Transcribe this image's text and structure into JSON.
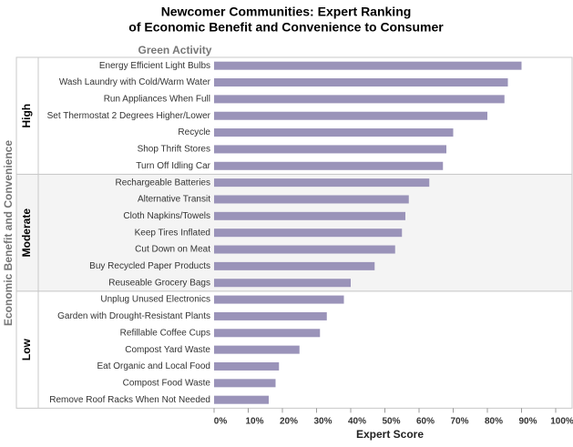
{
  "chart_data": {
    "type": "grouped-hbar",
    "title": [
      "Newcomer Communities: Expert Ranking",
      "of Economic Benefit and Convenience to Consumer"
    ],
    "category_header": "Green Activity",
    "y_label": "Economic Benefit and Convenience",
    "x_label": "Expert Score",
    "color": "#9a93b9",
    "groups": [
      {
        "name": "High",
        "categories": [
          "Energy Efficient Light Bulbs",
          "Wash Laundry with Cold/Warm Water",
          "Run Appliances When Full",
          "Set Thermostat 2 Degrees Higher/Lower",
          "Recycle",
          "Shop Thrift Stores",
          "Turn Off Idling Car"
        ],
        "values": [
          90,
          86,
          85,
          80,
          70,
          68,
          67
        ]
      },
      {
        "name": "Moderate",
        "categories": [
          "Rechargeable Batteries",
          "Alternative Transit",
          "Cloth Napkins/Towels",
          "Keep Tires Inflated",
          "Cut Down on Meat",
          "Buy Recycled Paper Products",
          "Reuseable Grocery Bags"
        ],
        "values": [
          63,
          57,
          56,
          55,
          53,
          47,
          40
        ]
      },
      {
        "name": "Low",
        "categories": [
          "Unplug Unused Electronics",
          "Garden with Drought-Resistant Plants",
          "Refillable Coffee Cups",
          "Compost Yard Waste",
          "Eat Organic and Local Food",
          "Compost Food Waste",
          "Remove Roof Racks When Not Needed"
        ],
        "values": [
          38,
          33,
          31,
          25,
          19,
          18,
          16
        ]
      }
    ],
    "xlim": [
      0,
      100
    ],
    "xticks": [
      {
        "value": 0,
        "label": "0%"
      },
      {
        "value": 10,
        "label": "10%"
      },
      {
        "value": 20,
        "label": "20%"
      },
      {
        "value": 30,
        "label": "30%"
      },
      {
        "value": 40,
        "label": "40%"
      },
      {
        "value": 50,
        "label": "50%"
      },
      {
        "value": 60,
        "label": "60%"
      },
      {
        "value": 70,
        "label": "70%"
      },
      {
        "value": 80,
        "label": "80%"
      },
      {
        "value": 90,
        "label": "90%"
      },
      {
        "value": 100,
        "label": "100%"
      }
    ]
  }
}
